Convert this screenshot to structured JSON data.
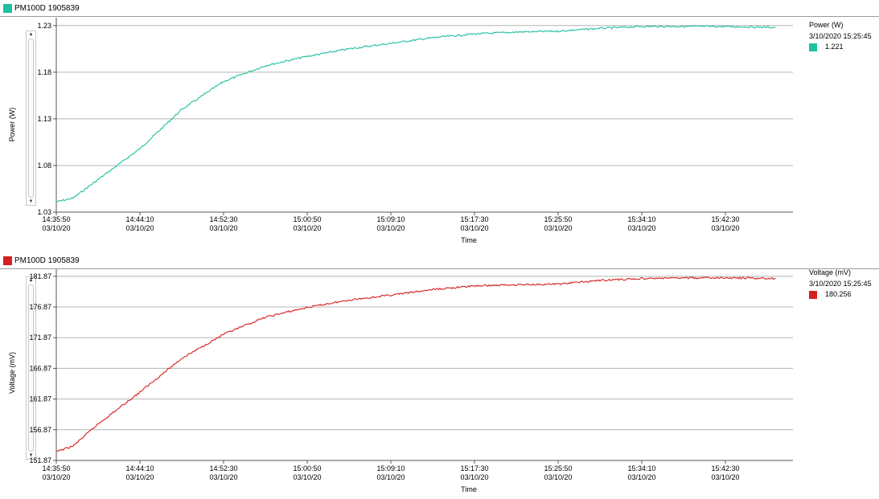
{
  "colors": {
    "power": "#1fc0a0",
    "voltage": "#d42020",
    "grid": "#b4b4b4",
    "axis": "#555555"
  },
  "top_panel": {
    "title": "PM100D 1905839",
    "legend": {
      "title": "Power (W)",
      "timestamp": "3/10/2020 15:25:45",
      "value": "1.221"
    }
  },
  "bottom_panel": {
    "title": "PM100D 1905839",
    "legend": {
      "title": "Voltage (mV)",
      "timestamp": "3/10/2020 15:25:45",
      "value": "180.256"
    }
  },
  "chart_data": [
    {
      "type": "line",
      "ylabel": "Power (W)",
      "xlabel": "Time",
      "ylim": [
        1.03,
        1.235
      ],
      "yticks": [
        "1.23",
        "1.18",
        "1.13",
        "1.08",
        "1.03"
      ],
      "ytick_values": [
        1.23,
        1.18,
        1.13,
        1.08,
        1.03
      ],
      "xticks": [
        {
          "time": "14:35:50",
          "date": "03/10/20"
        },
        {
          "time": "14:44:10",
          "date": "03/10/20"
        },
        {
          "time": "14:52:30",
          "date": "03/10/20"
        },
        {
          "time": "15:00:50",
          "date": "03/10/20"
        },
        {
          "time": "15:09:10",
          "date": "03/10/20"
        },
        {
          "time": "15:17:30",
          "date": "03/10/20"
        },
        {
          "time": "15:25:50",
          "date": "03/10/20"
        },
        {
          "time": "15:34:10",
          "date": "03/10/20"
        },
        {
          "time": "15:42:30",
          "date": "03/10/20"
        }
      ],
      "grid": true,
      "legend_placement": "top-right",
      "series": [
        {
          "x": [
            "14:35:50",
            "14:37:30",
            "14:40:00",
            "14:44:10",
            "14:48:20",
            "14:52:30",
            "14:56:40",
            "15:00:50",
            "15:05:00",
            "15:09:10",
            "15:13:20",
            "15:17:30",
            "15:21:40",
            "15:25:50",
            "15:30:00",
            "15:34:10",
            "15:38:20",
            "15:42:30",
            "15:47:30"
          ],
          "y": [
            1.041,
            1.045,
            1.065,
            1.098,
            1.14,
            1.17,
            1.187,
            1.197,
            1.205,
            1.211,
            1.217,
            1.221,
            1.223,
            1.224,
            1.227,
            1.229,
            1.229,
            1.229,
            1.228
          ]
        }
      ]
    },
    {
      "type": "line",
      "ylabel": "Voltage (mV)",
      "xlabel": "Time",
      "ylim": [
        151.87,
        182.5
      ],
      "yticks": [
        "181.87",
        "176.87",
        "171.87",
        "166.87",
        "161.87",
        "156.87",
        "151.87"
      ],
      "ytick_values": [
        181.87,
        176.87,
        171.87,
        166.87,
        161.87,
        156.87,
        151.87
      ],
      "xticks": [
        {
          "time": "14:35:50",
          "date": "03/10/20"
        },
        {
          "time": "14:44:10",
          "date": "03/10/20"
        },
        {
          "time": "14:52:30",
          "date": "03/10/20"
        },
        {
          "time": "15:00:50",
          "date": "03/10/20"
        },
        {
          "time": "15:09:10",
          "date": "03/10/20"
        },
        {
          "time": "15:17:30",
          "date": "03/10/20"
        },
        {
          "time": "15:25:50",
          "date": "03/10/20"
        },
        {
          "time": "15:34:10",
          "date": "03/10/20"
        },
        {
          "time": "15:42:30",
          "date": "03/10/20"
        }
      ],
      "grid": true,
      "legend_placement": "top-right",
      "series": [
        {
          "x": [
            "14:35:50",
            "14:37:30",
            "14:40:00",
            "14:44:10",
            "14:48:20",
            "14:52:30",
            "14:56:40",
            "15:00:50",
            "15:05:00",
            "15:09:10",
            "15:13:20",
            "15:17:30",
            "15:21:40",
            "15:25:50",
            "15:30:00",
            "15:34:10",
            "15:38:20",
            "15:42:30",
            "15:47:30"
          ],
          "y": [
            153.3,
            154.2,
            157.8,
            163.0,
            168.5,
            172.4,
            175.2,
            176.8,
            178.0,
            178.8,
            179.7,
            180.3,
            180.5,
            180.6,
            181.2,
            181.5,
            181.6,
            181.6,
            181.5
          ]
        }
      ]
    }
  ]
}
